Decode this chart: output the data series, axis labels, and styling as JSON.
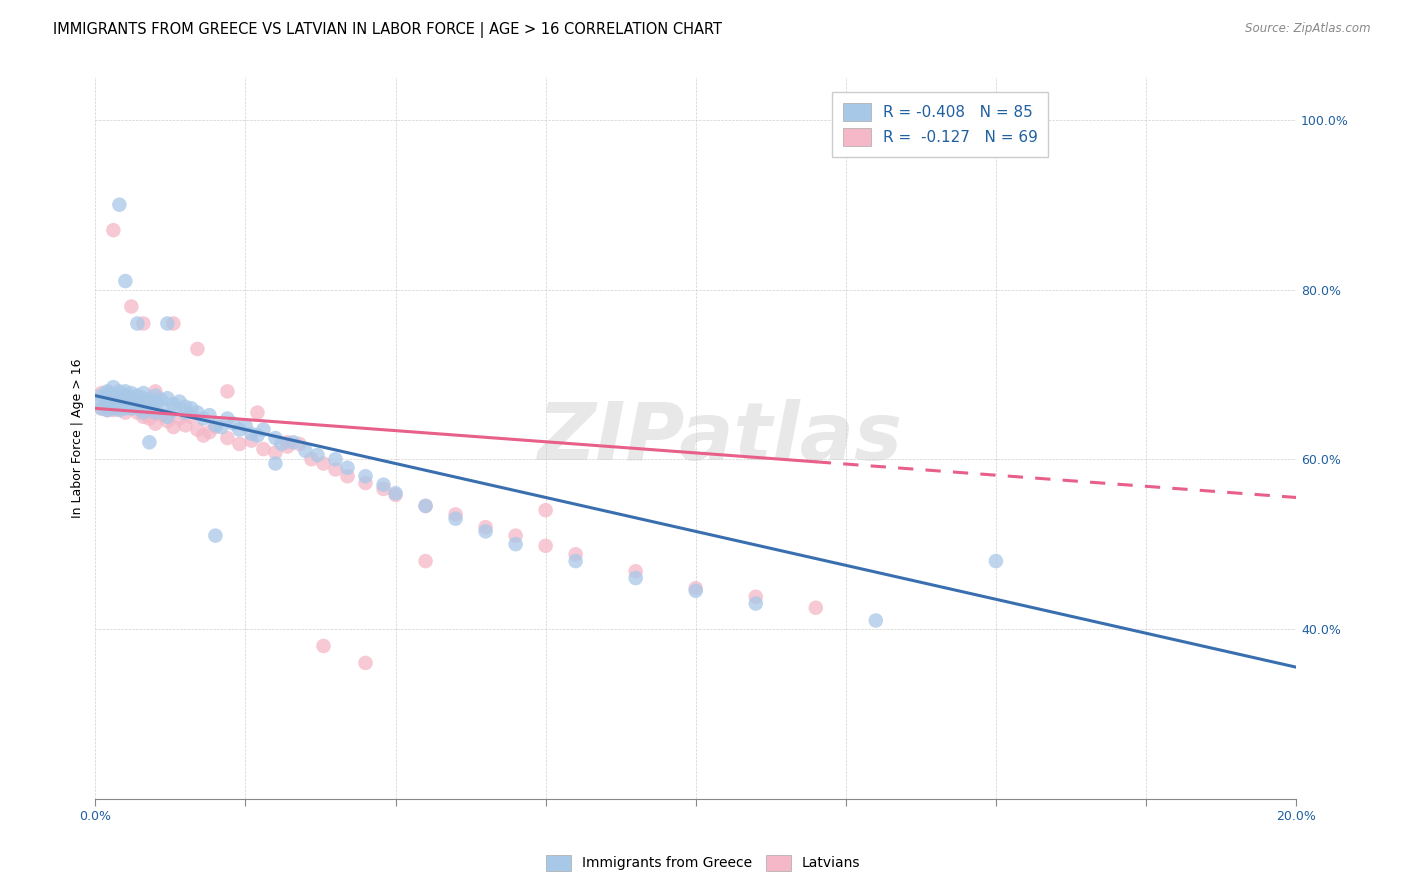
{
  "title": "IMMIGRANTS FROM GREECE VS LATVIAN IN LABOR FORCE | AGE > 16 CORRELATION CHART",
  "source_text": "Source: ZipAtlas.com",
  "ylabel": "In Labor Force | Age > 16",
  "x_min": 0.0,
  "x_max": 0.2,
  "y_min": 0.2,
  "y_max": 1.05,
  "x_ticks": [
    0.0,
    0.025,
    0.05,
    0.075,
    0.1,
    0.125,
    0.15,
    0.175,
    0.2
  ],
  "x_tick_labels": [
    "0.0%",
    "",
    "",
    "",
    "",
    "",
    "",
    "",
    "20.0%"
  ],
  "y_ticks": [
    0.2,
    0.4,
    0.6,
    0.8,
    1.0
  ],
  "y_tick_labels": [
    "",
    "40.0%",
    "60.0%",
    "80.0%",
    "100.0%"
  ],
  "color_blue": "#a8c8e8",
  "color_pink": "#f4b8c8",
  "trend_blue": "#3a6faf",
  "trend_pink": "#e8608a",
  "R_blue": -0.408,
  "N_blue": 85,
  "R_pink": -0.127,
  "N_pink": 69,
  "legend_color": "#2060a0",
  "watermark": "ZIPatlas",
  "blue_trend_x0": 0.0,
  "blue_trend_y0": 0.675,
  "blue_trend_x1": 0.2,
  "blue_trend_y1": 0.355,
  "pink_trend_x0": 0.0,
  "pink_trend_y0": 0.66,
  "pink_trend_x1": 0.2,
  "pink_trend_y1": 0.555,
  "blue_scatter_x": [
    0.001,
    0.001,
    0.001,
    0.002,
    0.002,
    0.002,
    0.002,
    0.002,
    0.003,
    0.003,
    0.003,
    0.003,
    0.003,
    0.004,
    0.004,
    0.004,
    0.004,
    0.005,
    0.005,
    0.005,
    0.005,
    0.006,
    0.006,
    0.006,
    0.006,
    0.007,
    0.007,
    0.007,
    0.008,
    0.008,
    0.008,
    0.009,
    0.009,
    0.01,
    0.01,
    0.01,
    0.011,
    0.011,
    0.012,
    0.012,
    0.013,
    0.013,
    0.014,
    0.015,
    0.015,
    0.016,
    0.017,
    0.018,
    0.019,
    0.02,
    0.021,
    0.022,
    0.023,
    0.024,
    0.025,
    0.026,
    0.027,
    0.028,
    0.03,
    0.031,
    0.033,
    0.035,
    0.037,
    0.04,
    0.042,
    0.045,
    0.048,
    0.05,
    0.055,
    0.06,
    0.065,
    0.07,
    0.08,
    0.09,
    0.1,
    0.11,
    0.13,
    0.15,
    0.004,
    0.005,
    0.007,
    0.009,
    0.012,
    0.02,
    0.03
  ],
  "blue_scatter_y": [
    0.67,
    0.675,
    0.66,
    0.68,
    0.665,
    0.672,
    0.658,
    0.678,
    0.685,
    0.67,
    0.66,
    0.668,
    0.675,
    0.68,
    0.665,
    0.67,
    0.658,
    0.675,
    0.68,
    0.66,
    0.67,
    0.672,
    0.678,
    0.66,
    0.665,
    0.675,
    0.668,
    0.66,
    0.672,
    0.678,
    0.655,
    0.67,
    0.66,
    0.668,
    0.675,
    0.655,
    0.67,
    0.66,
    0.672,
    0.65,
    0.665,
    0.658,
    0.668,
    0.662,
    0.655,
    0.66,
    0.655,
    0.648,
    0.652,
    0.64,
    0.638,
    0.648,
    0.642,
    0.635,
    0.64,
    0.63,
    0.628,
    0.635,
    0.625,
    0.618,
    0.62,
    0.61,
    0.605,
    0.6,
    0.59,
    0.58,
    0.57,
    0.56,
    0.545,
    0.53,
    0.515,
    0.5,
    0.48,
    0.46,
    0.445,
    0.43,
    0.41,
    0.48,
    0.9,
    0.81,
    0.76,
    0.62,
    0.76,
    0.51,
    0.595
  ],
  "pink_scatter_x": [
    0.001,
    0.001,
    0.002,
    0.002,
    0.003,
    0.003,
    0.003,
    0.004,
    0.004,
    0.005,
    0.005,
    0.005,
    0.006,
    0.006,
    0.007,
    0.007,
    0.008,
    0.008,
    0.009,
    0.009,
    0.01,
    0.01,
    0.011,
    0.012,
    0.013,
    0.014,
    0.015,
    0.016,
    0.017,
    0.018,
    0.019,
    0.02,
    0.022,
    0.024,
    0.026,
    0.028,
    0.03,
    0.032,
    0.034,
    0.036,
    0.038,
    0.04,
    0.042,
    0.045,
    0.048,
    0.05,
    0.055,
    0.06,
    0.065,
    0.07,
    0.075,
    0.08,
    0.09,
    0.1,
    0.11,
    0.12,
    0.003,
    0.006,
    0.008,
    0.01,
    0.013,
    0.017,
    0.022,
    0.027,
    0.032,
    0.038,
    0.045,
    0.055,
    0.075
  ],
  "pink_scatter_y": [
    0.678,
    0.66,
    0.672,
    0.658,
    0.675,
    0.665,
    0.658,
    0.67,
    0.66,
    0.675,
    0.668,
    0.655,
    0.672,
    0.66,
    0.668,
    0.655,
    0.665,
    0.65,
    0.66,
    0.648,
    0.658,
    0.642,
    0.652,
    0.645,
    0.638,
    0.648,
    0.64,
    0.65,
    0.635,
    0.628,
    0.632,
    0.638,
    0.625,
    0.618,
    0.622,
    0.612,
    0.608,
    0.615,
    0.618,
    0.6,
    0.595,
    0.588,
    0.58,
    0.572,
    0.565,
    0.558,
    0.545,
    0.535,
    0.52,
    0.51,
    0.498,
    0.488,
    0.468,
    0.448,
    0.438,
    0.425,
    0.87,
    0.78,
    0.76,
    0.68,
    0.76,
    0.73,
    0.68,
    0.655,
    0.62,
    0.38,
    0.36,
    0.48,
    0.54
  ],
  "bg_color": "#ffffff",
  "title_fontsize": 10.5,
  "tick_fontsize": 9,
  "legend_fontsize": 11,
  "source_fontsize": 8.5
}
